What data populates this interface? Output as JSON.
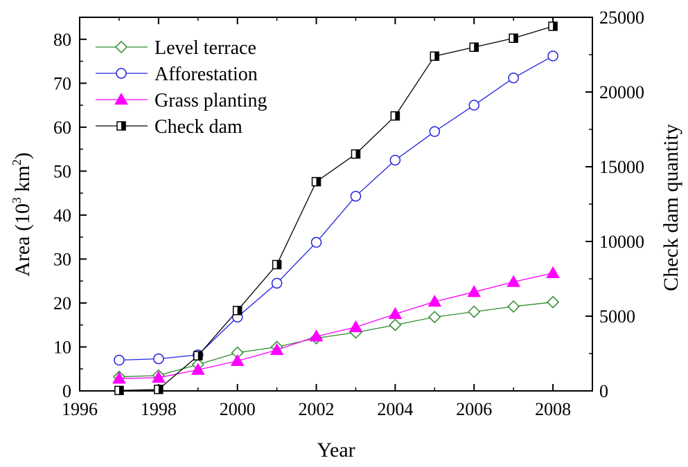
{
  "chart_data": {
    "type": "line",
    "xlabel": "Year",
    "ylabel": "Area (10³ km²)",
    "ylabel_parts": {
      "prefix": "Area (10",
      "sup1": "3",
      "mid": " km",
      "sup2": "2",
      "suffix": ")"
    },
    "y2label": "Check dam quantity",
    "xlim": [
      1996,
      2009
    ],
    "ylim": [
      0,
      85
    ],
    "y2lim": [
      0,
      25000
    ],
    "x_ticks": [
      "1996",
      "1998",
      "2000",
      "2002",
      "2004",
      "2006",
      "2008"
    ],
    "y_ticks": [
      "0",
      "10",
      "20",
      "30",
      "40",
      "50",
      "60",
      "70",
      "80"
    ],
    "y2_ticks": [
      "0",
      "5000",
      "10000",
      "15000",
      "20000",
      "25000"
    ],
    "legend_position": "top-left",
    "grid": false,
    "x": [
      1997,
      1998,
      1999,
      2000,
      2001,
      2002,
      2003,
      2004,
      2005,
      2006,
      2007,
      2008
    ],
    "series": [
      {
        "name": "Level terrace",
        "axis": "left",
        "color": "#2e8b2e",
        "marker": "diamond-open",
        "values": [
          3.2,
          3.5,
          6.0,
          8.7,
          10.0,
          12.0,
          13.3,
          15.0,
          16.8,
          18.0,
          19.2,
          20.2
        ]
      },
      {
        "name": "Afforestation",
        "axis": "left",
        "color": "#2222dd",
        "marker": "circle-open",
        "values": [
          7.0,
          7.3,
          8.2,
          16.8,
          24.5,
          33.8,
          44.3,
          52.5,
          59.0,
          65.0,
          71.2,
          76.2
        ]
      },
      {
        "name": "Grass planting",
        "axis": "left",
        "color": "#ff00ff",
        "marker": "triangle-filled",
        "values": [
          2.8,
          3.0,
          4.8,
          6.8,
          9.3,
          12.4,
          14.5,
          17.5,
          20.3,
          22.5,
          24.8,
          26.8
        ]
      },
      {
        "name": "Check dam",
        "axis": "right",
        "color": "#000000",
        "marker": "square-half",
        "values": [
          30,
          100,
          2350,
          5380,
          8450,
          14000,
          15850,
          18400,
          22400,
          23000,
          23600,
          24400
        ]
      }
    ]
  }
}
